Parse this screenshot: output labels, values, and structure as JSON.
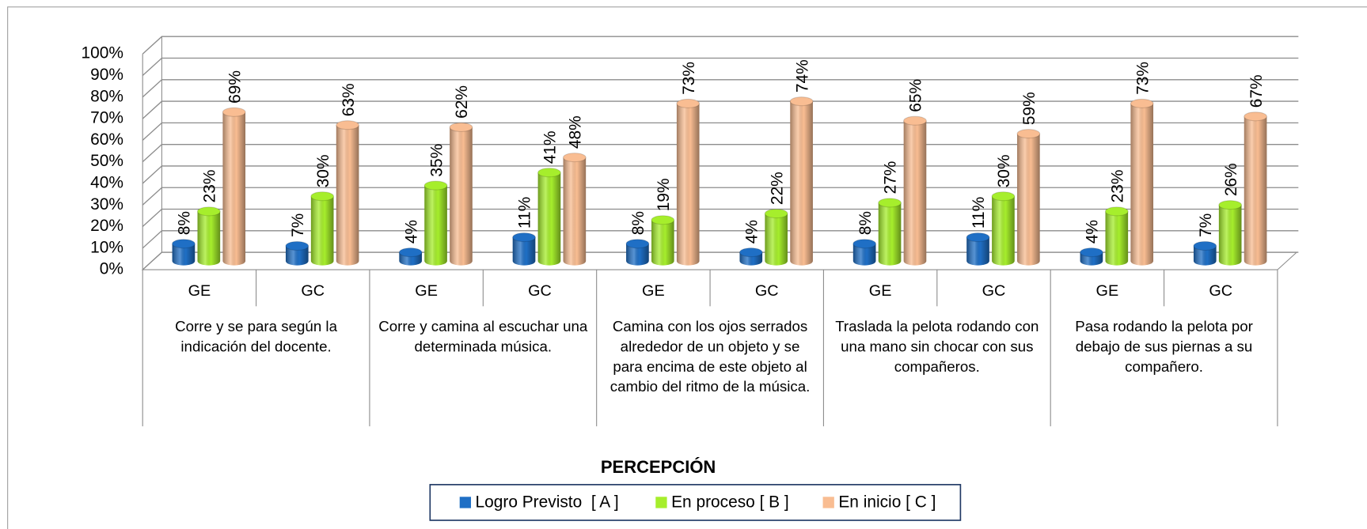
{
  "chart_data": {
    "type": "bar3d",
    "x_label": "PERCEPCIÓN",
    "categories": [
      "GE",
      "GC",
      "GE",
      "GC",
      "GE",
      "GC",
      "GE",
      "GC",
      "GE",
      "GC"
    ],
    "groups": [
      "Corre y se para según la indicación del docente.",
      "Corre y camina al escuchar una determinada música.",
      "Camina con los ojos serrados alrededor de un objeto y se para encima de este objeto al cambio del ritmo de la música.",
      "Traslada la pelota  rodando con una mano  sin chocar con sus compañeros.",
      "Pasa rodando la pelota  por debajo  de sus piernas a su compañero."
    ],
    "series": [
      {
        "name": "Logro Previsto  [ A ]",
        "color": "#1f6fc5",
        "values": [
          8,
          7,
          4,
          11,
          8,
          4,
          8,
          11,
          4,
          7
        ],
        "value_labels": [
          "8%",
          "7%",
          "4%",
          "11%",
          "8%",
          "4%",
          "8%",
          "11%",
          "4%",
          "7%"
        ]
      },
      {
        "name": "En proceso [ B ]",
        "color": "#a6ee2c",
        "values": [
          23,
          30,
          35,
          41,
          19,
          22,
          27,
          30,
          23,
          26
        ],
        "value_labels": [
          "23%",
          "30%",
          "35%",
          "41%",
          "19%",
          "22%",
          "27%",
          "30%",
          "23%",
          "26%"
        ]
      },
      {
        "name": "En inicio [ C ]",
        "color": "#f9bd92",
        "values": [
          69,
          63,
          62,
          48,
          73,
          74,
          65,
          59,
          73,
          67
        ],
        "value_labels": [
          "69%",
          "63%",
          "62%",
          "48%",
          "73%",
          "74%",
          "65%",
          "59%",
          "73%",
          "67%"
        ]
      }
    ],
    "ylim": [
      0,
      100
    ],
    "yticks": [
      {
        "value": 0,
        "label": "0%"
      },
      {
        "value": 10,
        "label": "10%"
      },
      {
        "value": 20,
        "label": "20%"
      },
      {
        "value": 30,
        "label": "30%"
      },
      {
        "value": 40,
        "label": "40%"
      },
      {
        "value": 50,
        "label": "50%"
      },
      {
        "value": 60,
        "label": "60%"
      },
      {
        "value": 70,
        "label": "70%"
      },
      {
        "value": 80,
        "label": "80%"
      },
      {
        "value": 90,
        "label": "90%"
      },
      {
        "value": 100,
        "label": "100%"
      }
    ],
    "grid": true,
    "legend": "bottom"
  }
}
